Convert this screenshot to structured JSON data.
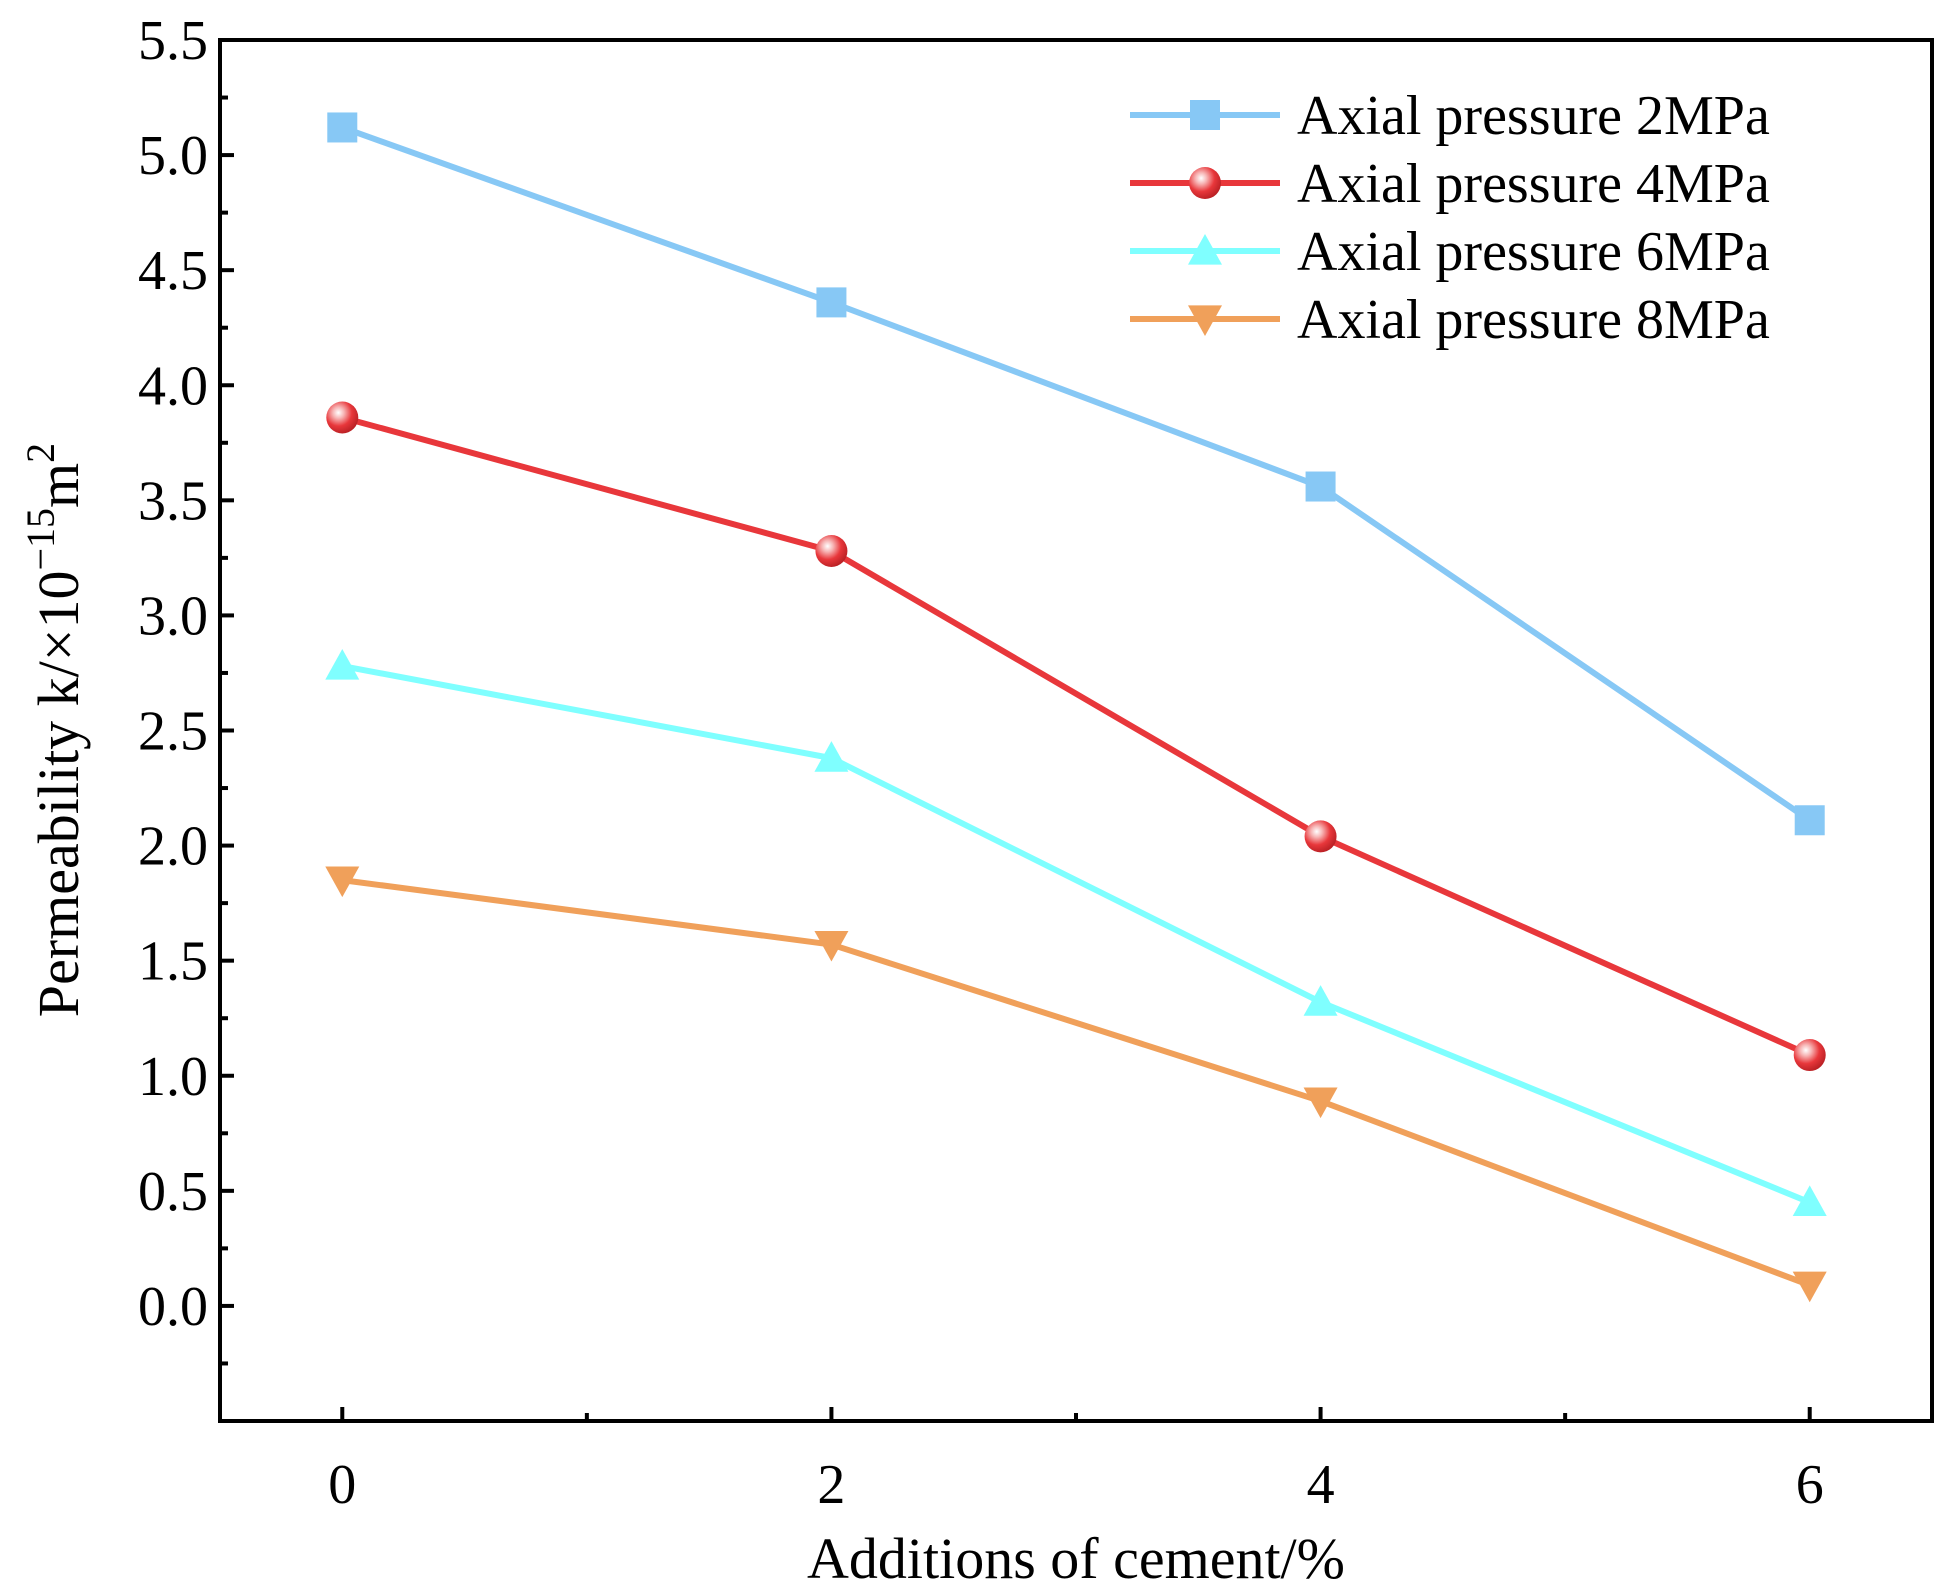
{
  "chart_data": {
    "type": "line",
    "title": "",
    "xlabel": "Additions of cement/%",
    "ylabel": {
      "prefix": "Permeability k/×10",
      "exponent": "−15",
      "unit": "m",
      "unit_exponent": "2"
    },
    "x": [
      0,
      2,
      4,
      6
    ],
    "xlim": [
      -0.5,
      6.5
    ],
    "xticks": [
      0,
      2,
      4,
      6
    ],
    "xtick_labels": [
      "0",
      "2",
      "4",
      "6"
    ],
    "ylim": [
      -0.5,
      5.5
    ],
    "yticks": [
      0.0,
      0.5,
      1.0,
      1.5,
      2.0,
      2.5,
      3.0,
      3.5,
      4.0,
      4.5,
      5.0,
      5.5
    ],
    "ytick_labels": [
      "0.0",
      "0.5",
      "1.0",
      "1.5",
      "2.0",
      "2.5",
      "3.0",
      "3.5",
      "4.0",
      "4.5",
      "5.0",
      "5.5"
    ],
    "grid": false,
    "legend_position": "top-right",
    "series": [
      {
        "name": "Axial pressure 2MPa",
        "color": "#87C8F5",
        "marker": "square",
        "values": [
          5.12,
          4.36,
          3.56,
          2.11
        ]
      },
      {
        "name": "Axial pressure 4MPa",
        "color": "#E8373B",
        "marker": "circle",
        "values": [
          3.86,
          3.28,
          2.04,
          1.09
        ]
      },
      {
        "name": "Axial pressure 6MPa",
        "color": "#7FFFFF",
        "marker": "triangle-up",
        "values": [
          2.78,
          2.38,
          1.32,
          0.45
        ]
      },
      {
        "name": "Axial pressure 8MPa",
        "color": "#F0A05A",
        "marker": "triangle-down",
        "values": [
          1.85,
          1.57,
          0.89,
          0.09
        ]
      }
    ]
  }
}
